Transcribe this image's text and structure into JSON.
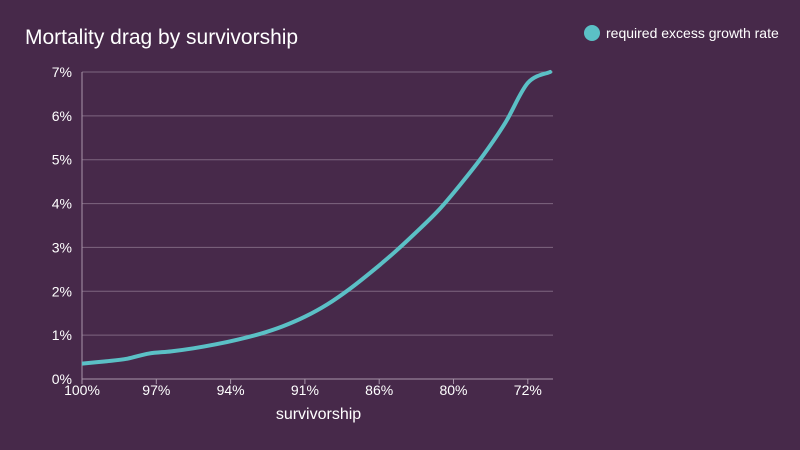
{
  "chart_data": {
    "type": "line",
    "title": "Mortality drag by survivorship",
    "xlabel": "survivorship",
    "ylabel": "",
    "x_tick_labels": [
      "100%",
      "97%",
      "94%",
      "91%",
      "86%",
      "80%",
      "72%"
    ],
    "y_tick_labels": [
      "0%",
      "1%",
      "2%",
      "3%",
      "4%",
      "5%",
      "6%",
      "7%"
    ],
    "ylim": [
      0,
      7
    ],
    "grid": "horizontal",
    "legend_position": "top-right",
    "series": [
      {
        "name": "required excess growth rate",
        "color": "#5bc0c6",
        "x_index": [
          0,
          0.3,
          0.6,
          0.9,
          1.2,
          1.5,
          1.8,
          2.1,
          2.4,
          2.7,
          3.0,
          3.3,
          3.6,
          3.9,
          4.2,
          4.5,
          4.8,
          5.1,
          5.4,
          5.7,
          6.0,
          6.3
        ],
        "values": [
          0.35,
          0.4,
          0.46,
          0.58,
          0.63,
          0.7,
          0.79,
          0.9,
          1.03,
          1.2,
          1.42,
          1.7,
          2.05,
          2.45,
          2.88,
          3.35,
          3.85,
          4.45,
          5.1,
          5.85,
          6.75,
          7.0
        ]
      }
    ]
  },
  "colors": {
    "background": "#47294a",
    "grid": "#7e6680",
    "axis": "#a895a9"
  }
}
